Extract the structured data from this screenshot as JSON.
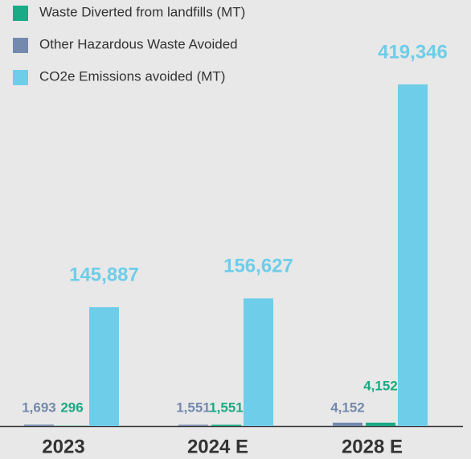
{
  "chart_data": {
    "type": "bar",
    "categories": [
      "2023",
      "2024 E",
      "2028 E"
    ],
    "series": [
      {
        "name": "Other Hazardous Waste Avoided",
        "color": "#7389ad",
        "values": [
          1693,
          1551,
          4152
        ],
        "value_labels": [
          "1,693",
          "1,551",
          "4,152"
        ]
      },
      {
        "name": "Waste Diverted from landfills (MT)",
        "color": "#1aaa85",
        "values": [
          296,
          1551,
          4152
        ],
        "value_labels": [
          "296",
          "1,551",
          "4,152"
        ]
      },
      {
        "name": "CO2e Emissions avoided (MT)",
        "color": "#6ecde9",
        "values": [
          145887,
          156627,
          419346
        ],
        "value_labels": [
          "145,887",
          "156,627",
          "419,346"
        ]
      }
    ],
    "legend_order": [
      1,
      0,
      2
    ]
  }
}
